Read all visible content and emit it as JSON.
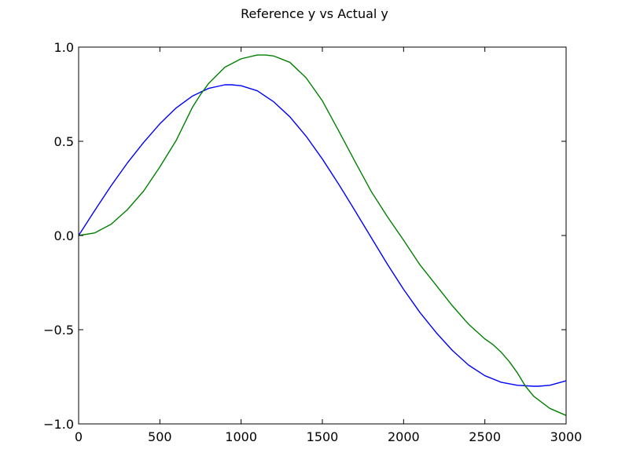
{
  "chart_data": {
    "type": "line",
    "title": "Reference y vs Actual y",
    "xlabel": "",
    "ylabel": "",
    "xlim": [
      0,
      3000
    ],
    "ylim": [
      -1.0,
      1.0
    ],
    "xticks": [
      0,
      500,
      1000,
      1500,
      2000,
      2500,
      3000
    ],
    "xtick_labels": [
      "0",
      "500",
      "1000",
      "1500",
      "2000",
      "2500",
      "3000"
    ],
    "yticks": [
      -1.0,
      -0.5,
      0.0,
      0.5,
      1.0
    ],
    "ytick_labels": [
      "−1.0",
      "−0.5",
      "0.0",
      "0.5",
      "1.0"
    ],
    "grid": false,
    "legend": false,
    "series": [
      {
        "color": "#0000ff",
        "x": [
          0,
          100,
          200,
          300,
          400,
          500,
          600,
          700,
          800,
          900,
          940,
          1000,
          1100,
          1200,
          1300,
          1400,
          1500,
          1600,
          1700,
          1800,
          1900,
          2000,
          2100,
          2200,
          2300,
          2400,
          2500,
          2600,
          2700,
          2800,
          2830,
          2900,
          3000
        ],
        "y": [
          0.0,
          0.134,
          0.264,
          0.385,
          0.494,
          0.593,
          0.677,
          0.74,
          0.781,
          0.8,
          0.8,
          0.795,
          0.768,
          0.71,
          0.63,
          0.527,
          0.406,
          0.273,
          0.133,
          -0.01,
          -0.152,
          -0.286,
          -0.408,
          -0.515,
          -0.61,
          -0.688,
          -0.744,
          -0.779,
          -0.795,
          -0.8,
          -0.8,
          -0.795,
          -0.771
        ]
      },
      {
        "color": "#008000",
        "x": [
          0,
          100,
          200,
          300,
          400,
          500,
          600,
          700,
          750,
          800,
          900,
          1000,
          1100,
          1150,
          1200,
          1300,
          1400,
          1500,
          1600,
          1700,
          1800,
          1900,
          2000,
          2100,
          2200,
          2300,
          2400,
          2500,
          2550,
          2600,
          2650,
          2700,
          2750,
          2800,
          2900,
          3000
        ],
        "y": [
          0.0,
          0.014,
          0.06,
          0.137,
          0.236,
          0.364,
          0.504,
          0.68,
          0.748,
          0.807,
          0.893,
          0.938,
          0.958,
          0.958,
          0.953,
          0.919,
          0.837,
          0.715,
          0.556,
          0.394,
          0.235,
          0.1,
          -0.025,
          -0.155,
          -0.264,
          -0.373,
          -0.471,
          -0.549,
          -0.579,
          -0.619,
          -0.669,
          -0.729,
          -0.8,
          -0.853,
          -0.918,
          -0.955
        ]
      }
    ]
  }
}
